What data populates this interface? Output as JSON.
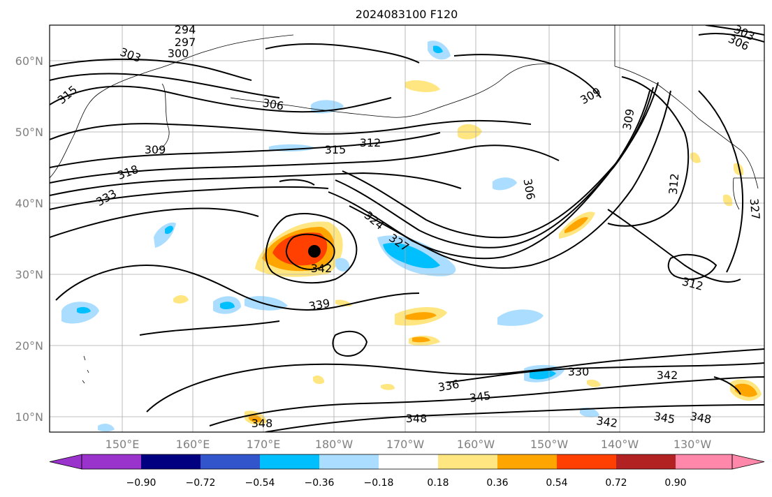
{
  "title": "2024083100 F120",
  "map": {
    "lat_labels": [
      "60°N",
      "50°N",
      "40°N",
      "30°N",
      "20°N",
      "10°N"
    ],
    "lon_labels": [
      "150°E",
      "160°E",
      "170°E",
      "180°W",
      "170°W",
      "160°W",
      "150°W",
      "140°W",
      "130°W"
    ],
    "grid": true,
    "storm_center_marker": true,
    "contour_labels": [
      "294",
      "297",
      "300",
      "303",
      "303",
      "306",
      "315",
      "306",
      "309",
      "309",
      "309",
      "315",
      "312",
      "318",
      "333",
      "306",
      "312",
      "324",
      "327",
      "327",
      "342",
      "339",
      "312",
      "330",
      "342",
      "336",
      "345",
      "348",
      "348",
      "342",
      "345",
      "348"
    ]
  },
  "colorbar": {
    "ticks": [
      "−0.90",
      "−0.72",
      "−0.54",
      "−0.36",
      "−0.18",
      "0.18",
      "0.36",
      "0.54",
      "0.72",
      "0.90"
    ],
    "colors": [
      "#9933cc",
      "#000080",
      "#3355cc",
      "#00bfff",
      "#aaddff",
      "#ffffff",
      "#ffe680",
      "#ffa500",
      "#ff4000",
      "#b22222",
      "#ff88aa"
    ],
    "extend": "both"
  }
}
